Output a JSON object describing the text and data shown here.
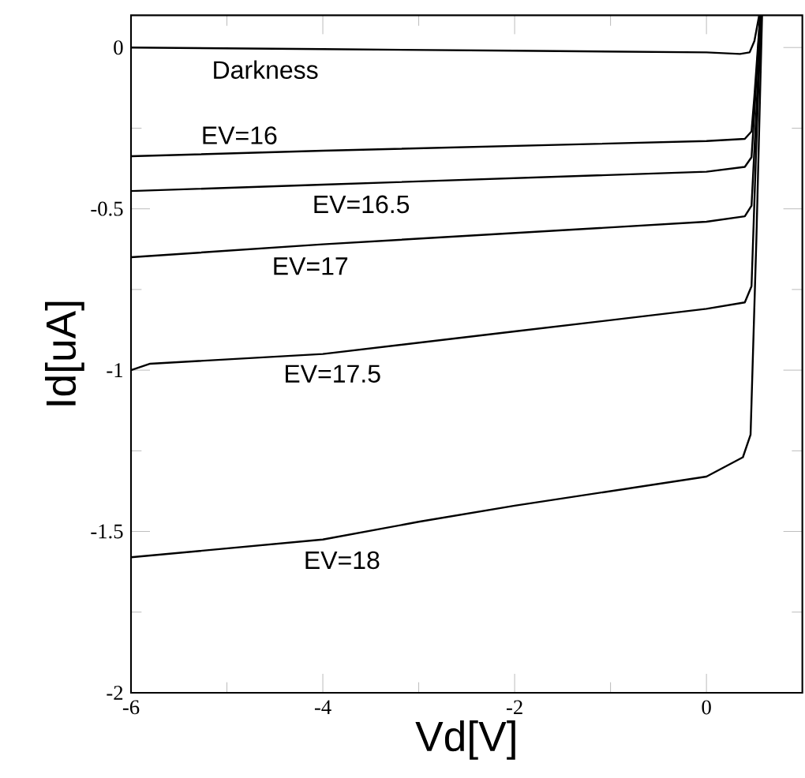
{
  "chart_data": {
    "type": "line",
    "xlabel": "Vd[V]",
    "ylabel": "Id[uA]",
    "xlim": [
      -6,
      1
    ],
    "ylim": [
      -2,
      0.1
    ],
    "xticks": [
      -6,
      -4,
      -2,
      0
    ],
    "yticks": [
      -2,
      -1.5,
      -1,
      -0.5,
      0
    ],
    "marker": "none",
    "line_style": "solid",
    "grid": false,
    "series": [
      {
        "name": "Darkness",
        "color": "#000000",
        "x": [
          -6,
          -4,
          -2,
          0,
          0.35,
          0.45,
          0.5,
          0.55
        ],
        "values": [
          0,
          -0.005,
          -0.01,
          -0.015,
          -0.02,
          -0.015,
          0.02,
          0.1
        ]
      },
      {
        "name": "EV=16",
        "color": "#000000",
        "x": [
          -6,
          -4,
          -2,
          0,
          0.4,
          0.47,
          0.5,
          0.56
        ],
        "values": [
          -0.337,
          -0.32,
          -0.305,
          -0.29,
          -0.283,
          -0.26,
          -0.15,
          0.1
        ]
      },
      {
        "name": "EV=16.5",
        "color": "#000000",
        "x": [
          -6,
          -4,
          -2,
          0,
          0.4,
          0.47,
          0.5,
          0.56
        ],
        "values": [
          -0.445,
          -0.425,
          -0.405,
          -0.385,
          -0.37,
          -0.34,
          -0.2,
          0.1
        ]
      },
      {
        "name": "EV=17",
        "color": "#000000",
        "x": [
          -6,
          -4,
          -2,
          0,
          0.4,
          0.47,
          0.52,
          0.57
        ],
        "values": [
          -0.65,
          -0.61,
          -0.575,
          -0.54,
          -0.523,
          -0.49,
          -0.2,
          0.1
        ]
      },
      {
        "name": "EV=17.5",
        "color": "#000000",
        "x": [
          -6,
          -5.8,
          -4,
          -2,
          0,
          0.4,
          0.47,
          0.52,
          0.57
        ],
        "values": [
          -1.0,
          -0.98,
          -0.95,
          -0.88,
          -0.81,
          -0.79,
          -0.74,
          -0.3,
          0.1
        ]
      },
      {
        "name": "EV=18",
        "color": "#000000",
        "x": [
          -6,
          -4,
          -3,
          -2,
          0,
          0.38,
          0.46,
          0.52,
          0.58
        ],
        "values": [
          -1.58,
          -1.525,
          -1.47,
          -1.42,
          -1.33,
          -1.27,
          -1.2,
          -0.6,
          0.1
        ]
      }
    ]
  }
}
